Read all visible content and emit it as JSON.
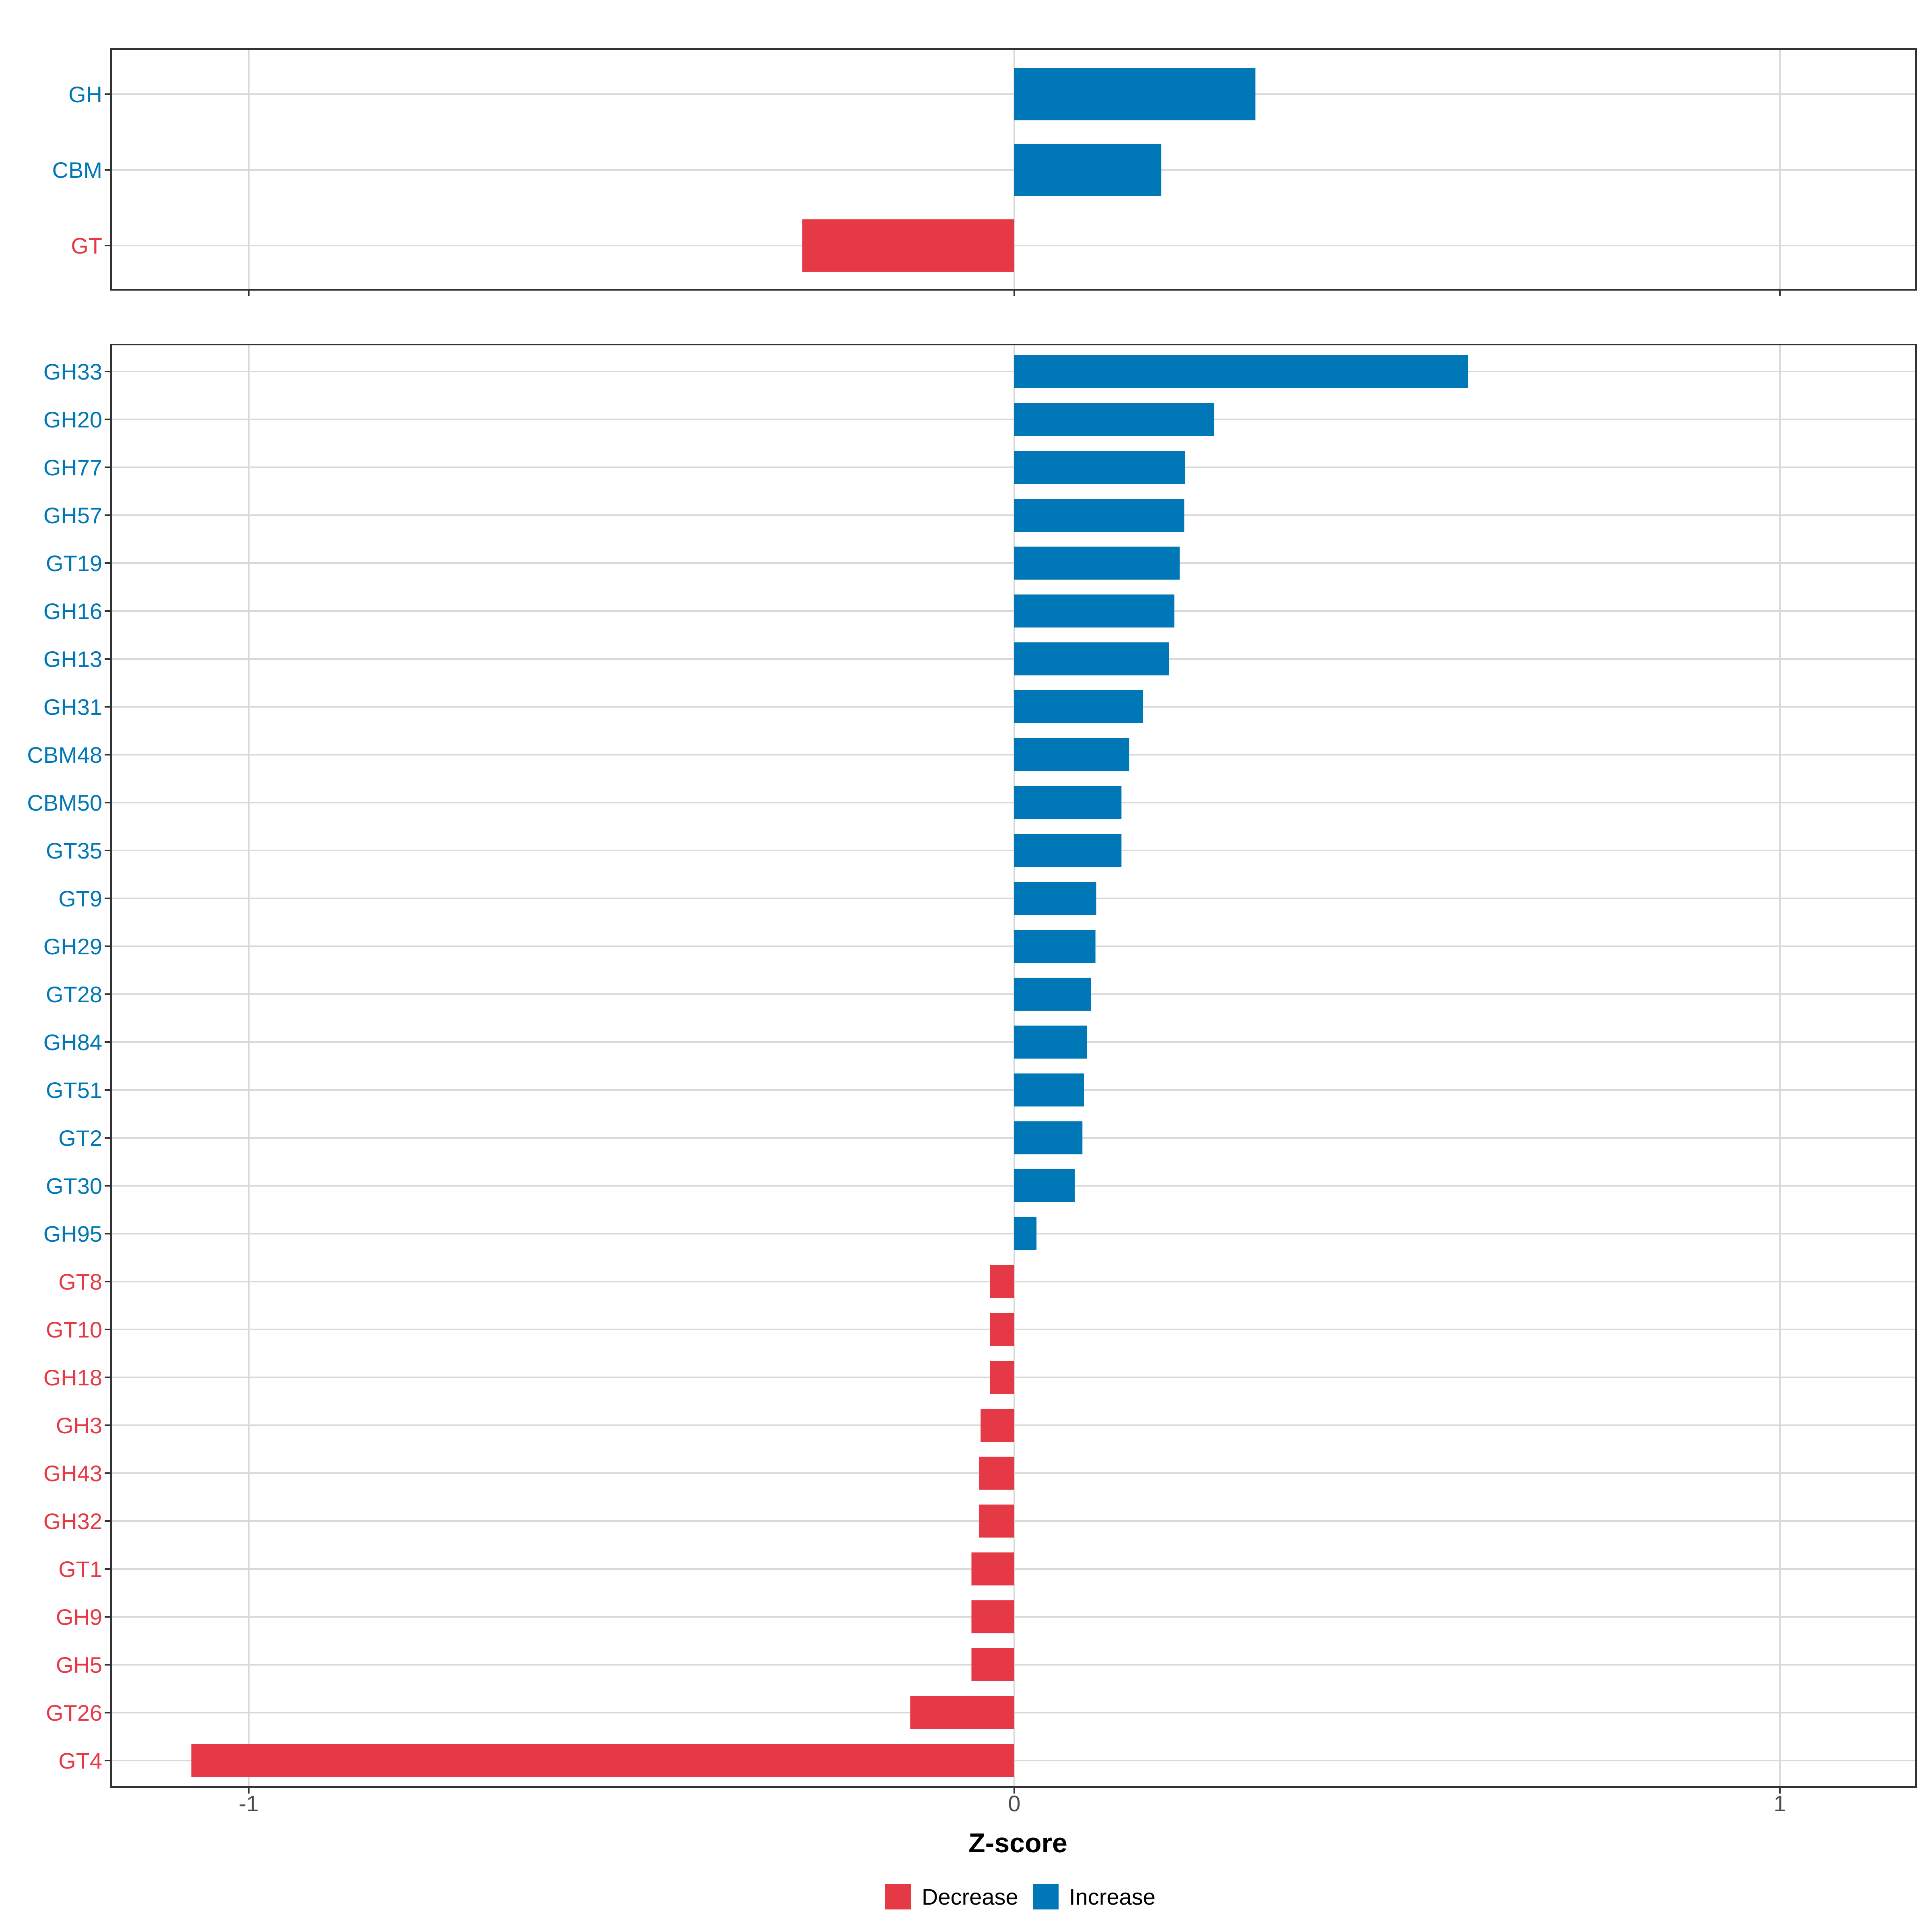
{
  "chart_data": [
    {
      "type": "bar",
      "orientation": "horizontal",
      "panel": "top",
      "categories": [
        "GH",
        "CBM",
        "GT"
      ],
      "values": [
        0.315,
        0.192,
        -0.277
      ],
      "direction": [
        "Increase",
        "Increase",
        "Decrease"
      ]
    },
    {
      "type": "bar",
      "orientation": "horizontal",
      "panel": "bottom",
      "categories": [
        "GH33",
        "GH20",
        "GH77",
        "GH57",
        "GT19",
        "GH16",
        "GH13",
        "GH31",
        "CBM48",
        "CBM50",
        "GT35",
        "GT9",
        "GH29",
        "GT28",
        "GH84",
        "GT51",
        "GT2",
        "GT30",
        "GH95",
        "GT8",
        "GT10",
        "GH18",
        "GH3",
        "GH43",
        "GH32",
        "GT1",
        "GH9",
        "GH5",
        "GT26",
        "GT4"
      ],
      "values": [
        0.593,
        0.261,
        0.223,
        0.222,
        0.216,
        0.209,
        0.202,
        0.168,
        0.15,
        0.14,
        0.14,
        0.107,
        0.106,
        0.1,
        0.095,
        0.091,
        0.089,
        0.079,
        0.029,
        -0.032,
        -0.032,
        -0.032,
        -0.044,
        -0.046,
        -0.046,
        -0.056,
        -0.056,
        -0.056,
        -0.136,
        -1.075
      ],
      "direction": [
        "Increase",
        "Increase",
        "Increase",
        "Increase",
        "Increase",
        "Increase",
        "Increase",
        "Increase",
        "Increase",
        "Increase",
        "Increase",
        "Increase",
        "Increase",
        "Increase",
        "Increase",
        "Increase",
        "Increase",
        "Increase",
        "Increase",
        "Decrease",
        "Decrease",
        "Decrease",
        "Decrease",
        "Decrease",
        "Decrease",
        "Decrease",
        "Decrease",
        "Decrease",
        "Decrease",
        "Decrease"
      ]
    }
  ],
  "axis": {
    "xlabel": "Z-score",
    "xlim": [
      -1.18,
      1.18
    ],
    "ticks": [
      -1,
      0,
      1
    ],
    "tick_labels": [
      "-1",
      "0",
      "1"
    ],
    "grid": true
  },
  "legend": {
    "placement": "bottom",
    "items": [
      {
        "label": "Decrease",
        "color": "#e63946"
      },
      {
        "label": "Increase",
        "color": "#0077b6"
      }
    ]
  },
  "colors": {
    "Increase": "#0077b6",
    "Decrease": "#e63946",
    "grid": "#d9d9d9",
    "border": "#333333"
  }
}
